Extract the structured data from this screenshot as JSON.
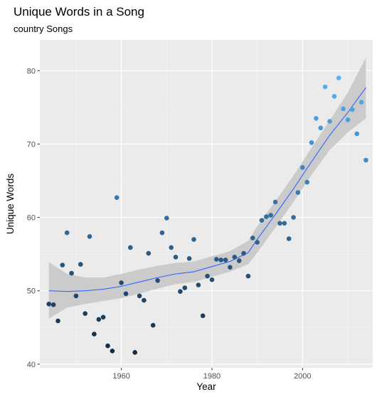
{
  "chart_data": {
    "type": "scatter",
    "title": "Unique Words in a Song",
    "subtitle": "country Songs",
    "xlabel": "Year",
    "ylabel": "Unique Words",
    "xlim": [
      1942,
      2015.5
    ],
    "ylim": [
      39.5,
      84.2
    ],
    "x_ticks": [
      1960,
      1980,
      2000
    ],
    "y_ticks": [
      40,
      50,
      60,
      70,
      80
    ],
    "grid": true,
    "legend": "none",
    "point_color_scale": [
      "#132b43",
      "#56b1f7"
    ],
    "background_color": "#ebebeb",
    "smooth_line_color": "#3366ff",
    "ribbon_color": "#c8c8c8",
    "points": [
      {
        "x": 1944,
        "y": 48.2
      },
      {
        "x": 1945,
        "y": 48.1
      },
      {
        "x": 1946,
        "y": 45.9
      },
      {
        "x": 1947,
        "y": 53.5
      },
      {
        "x": 1948,
        "y": 57.9
      },
      {
        "x": 1949,
        "y": 52.4
      },
      {
        "x": 1950,
        "y": 49.3
      },
      {
        "x": 1951,
        "y": 53.6
      },
      {
        "x": 1952,
        "y": 46.9
      },
      {
        "x": 1953,
        "y": 57.4
      },
      {
        "x": 1954,
        "y": 44.1
      },
      {
        "x": 1955,
        "y": 46.1
      },
      {
        "x": 1956,
        "y": 46.4
      },
      {
        "x": 1957,
        "y": 42.5
      },
      {
        "x": 1958,
        "y": 41.8
      },
      {
        "x": 1959,
        "y": 62.7
      },
      {
        "x": 1960,
        "y": 51.1
      },
      {
        "x": 1961,
        "y": 49.6
      },
      {
        "x": 1962,
        "y": 55.9
      },
      {
        "x": 1963,
        "y": 41.6
      },
      {
        "x": 1964,
        "y": 49.3
      },
      {
        "x": 1965,
        "y": 48.7
      },
      {
        "x": 1966,
        "y": 55.1
      },
      {
        "x": 1967,
        "y": 45.3
      },
      {
        "x": 1968,
        "y": 51.4
      },
      {
        "x": 1969,
        "y": 57.9
      },
      {
        "x": 1970,
        "y": 59.9
      },
      {
        "x": 1971,
        "y": 55.9
      },
      {
        "x": 1972,
        "y": 54.6
      },
      {
        "x": 1973,
        "y": 49.9
      },
      {
        "x": 1974,
        "y": 50.4
      },
      {
        "x": 1975,
        "y": 54.4
      },
      {
        "x": 1976,
        "y": 57.0
      },
      {
        "x": 1977,
        "y": 50.8
      },
      {
        "x": 1978,
        "y": 46.6
      },
      {
        "x": 1979,
        "y": 52.0
      },
      {
        "x": 1980,
        "y": 51.5
      },
      {
        "x": 1981,
        "y": 54.3
      },
      {
        "x": 1982,
        "y": 54.2
      },
      {
        "x": 1983,
        "y": 54.2
      },
      {
        "x": 1984,
        "y": 53.2
      },
      {
        "x": 1985,
        "y": 54.6
      },
      {
        "x": 1986,
        "y": 54.1
      },
      {
        "x": 1987,
        "y": 55.1
      },
      {
        "x": 1988,
        "y": 52.0
      },
      {
        "x": 1989,
        "y": 57.2
      },
      {
        "x": 1990,
        "y": 56.6
      },
      {
        "x": 1991,
        "y": 59.6
      },
      {
        "x": 1992,
        "y": 60.1
      },
      {
        "x": 1993,
        "y": 60.3
      },
      {
        "x": 1994,
        "y": 62.1
      },
      {
        "x": 1995,
        "y": 59.2
      },
      {
        "x": 1996,
        "y": 59.2
      },
      {
        "x": 1997,
        "y": 57.1
      },
      {
        "x": 1998,
        "y": 60.0
      },
      {
        "x": 1999,
        "y": 63.4
      },
      {
        "x": 2000,
        "y": 66.8
      },
      {
        "x": 2001,
        "y": 64.8
      },
      {
        "x": 2002,
        "y": 70.2
      },
      {
        "x": 2003,
        "y": 73.5
      },
      {
        "x": 2004,
        "y": 72.2
      },
      {
        "x": 2005,
        "y": 77.8
      },
      {
        "x": 2006,
        "y": 73.1
      },
      {
        "x": 2007,
        "y": 76.5
      },
      {
        "x": 2008,
        "y": 79.0
      },
      {
        "x": 2009,
        "y": 74.8
      },
      {
        "x": 2010,
        "y": 73.3
      },
      {
        "x": 2011,
        "y": 74.7
      },
      {
        "x": 2012,
        "y": 71.4
      },
      {
        "x": 2013,
        "y": 75.7
      },
      {
        "x": 2014,
        "y": 67.8
      }
    ],
    "smooth": [
      {
        "x": 1944,
        "y": 50.0,
        "lo": 46.2,
        "hi": 53.9
      },
      {
        "x": 1948,
        "y": 49.9,
        "lo": 47.7,
        "hi": 52.3
      },
      {
        "x": 1952,
        "y": 50.0,
        "lo": 48.2,
        "hi": 51.8
      },
      {
        "x": 1956,
        "y": 50.2,
        "lo": 48.6,
        "hi": 51.8
      },
      {
        "x": 1960,
        "y": 50.6,
        "lo": 49.0,
        "hi": 52.3
      },
      {
        "x": 1964,
        "y": 51.2,
        "lo": 49.6,
        "hi": 52.9
      },
      {
        "x": 1968,
        "y": 51.8,
        "lo": 50.3,
        "hi": 53.4
      },
      {
        "x": 1972,
        "y": 52.3,
        "lo": 50.9,
        "hi": 53.8
      },
      {
        "x": 1976,
        "y": 52.6,
        "lo": 51.2,
        "hi": 54.0
      },
      {
        "x": 1980,
        "y": 53.3,
        "lo": 51.9,
        "hi": 54.7
      },
      {
        "x": 1984,
        "y": 54.0,
        "lo": 52.6,
        "hi": 55.4
      },
      {
        "x": 1988,
        "y": 55.2,
        "lo": 53.6,
        "hi": 56.8
      },
      {
        "x": 1990,
        "y": 57.0,
        "lo": 55.2,
        "hi": 58.8
      },
      {
        "x": 1994,
        "y": 60.4,
        "lo": 58.6,
        "hi": 62.2
      },
      {
        "x": 1998,
        "y": 63.9,
        "lo": 62.1,
        "hi": 65.7
      },
      {
        "x": 2002,
        "y": 67.6,
        "lo": 65.8,
        "hi": 69.5
      },
      {
        "x": 2006,
        "y": 71.2,
        "lo": 69.2,
        "hi": 73.2
      },
      {
        "x": 2010,
        "y": 74.3,
        "lo": 71.6,
        "hi": 77.0
      },
      {
        "x": 2014,
        "y": 77.7,
        "lo": 73.5,
        "hi": 81.8
      }
    ]
  }
}
